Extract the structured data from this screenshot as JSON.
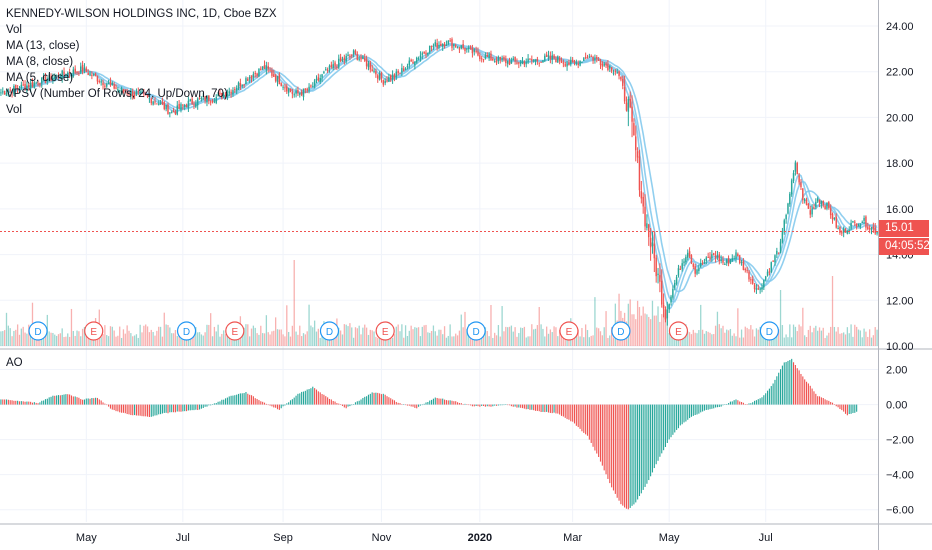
{
  "legend": {
    "title": "KENNEDY-WILSON HOLDINGS INC, 1D, Cboe BZX",
    "lines": [
      "Vol",
      "MA (13, close)",
      "MA (8, close)",
      "MA (5, close)",
      "VPSV (Number Of Rows, 24, Up/Down, 70)",
      "Vol"
    ]
  },
  "badges": {
    "last_price": "15.01",
    "countdown": "04:05:52"
  },
  "chart_data": [
    {
      "type": "candlestick",
      "title": "KENNEDY-WILSON HOLDINGS INC, 1D, Cboe BZX",
      "x_tick_labels": [
        "May",
        "Jul",
        "Sep",
        "Nov",
        "2020",
        "Mar",
        "May",
        "Jul"
      ],
      "y_tick_labels": [
        "10.00",
        "12.00",
        "14.00",
        "16.00",
        "18.00",
        "20.00",
        "22.00",
        "24.00"
      ],
      "ylim": [
        10,
        24.7
      ],
      "last_price": 15.01,
      "price_path": [
        [
          0,
          21.1
        ],
        [
          10,
          21.3
        ],
        [
          22,
          21.6
        ],
        [
          34,
          21.9
        ],
        [
          44,
          22.1
        ],
        [
          54,
          21.6
        ],
        [
          64,
          21.2
        ],
        [
          74,
          21.0
        ],
        [
          84,
          20.7
        ],
        [
          92,
          20.2
        ],
        [
          100,
          20.6
        ],
        [
          108,
          20.8
        ],
        [
          118,
          20.9
        ],
        [
          126,
          21.3
        ],
        [
          134,
          21.8
        ],
        [
          142,
          22.2
        ],
        [
          150,
          21.6
        ],
        [
          158,
          21.0
        ],
        [
          166,
          21.2
        ],
        [
          174,
          21.9
        ],
        [
          182,
          22.4
        ],
        [
          190,
          22.8
        ],
        [
          198,
          22.3
        ],
        [
          206,
          21.6
        ],
        [
          214,
          21.9
        ],
        [
          222,
          22.5
        ],
        [
          232,
          23.1
        ],
        [
          240,
          23.3
        ],
        [
          250,
          23.0
        ],
        [
          258,
          22.7
        ],
        [
          268,
          22.5
        ],
        [
          278,
          22.4
        ],
        [
          288,
          22.5
        ],
        [
          298,
          22.6
        ],
        [
          308,
          22.3
        ],
        [
          316,
          22.7
        ],
        [
          324,
          22.4
        ],
        [
          332,
          22.0
        ],
        [
          338,
          20.5
        ],
        [
          342,
          18.5
        ],
        [
          346,
          16.0
        ],
        [
          350,
          14.5
        ],
        [
          354,
          13.0
        ],
        [
          358,
          11.5
        ],
        [
          362,
          12.5
        ],
        [
          366,
          13.5
        ],
        [
          370,
          14.2
        ],
        [
          374,
          13.3
        ],
        [
          378,
          13.6
        ],
        [
          384,
          14.0
        ],
        [
          390,
          13.6
        ],
        [
          396,
          14.0
        ],
        [
          402,
          13.2
        ],
        [
          408,
          12.4
        ],
        [
          414,
          13.4
        ],
        [
          420,
          14.4
        ],
        [
          424,
          16.3
        ],
        [
          428,
          17.9
        ],
        [
          432,
          16.5
        ],
        [
          436,
          15.8
        ],
        [
          440,
          16.5
        ],
        [
          446,
          16.0
        ],
        [
          452,
          14.9
        ],
        [
          458,
          15.3
        ],
        [
          464,
          15.5
        ],
        [
          468,
          15.2
        ],
        [
          472,
          15.01
        ]
      ],
      "moving_averages": [
        "MA (13, close)",
        "MA (8, close)",
        "MA (5, close)"
      ],
      "dividend_markers": [
        "D",
        "D",
        "D",
        "D",
        "D",
        "D"
      ],
      "earnings_markers": [
        "E",
        "E",
        "E",
        "E",
        "E",
        "E"
      ]
    },
    {
      "type": "histogram",
      "title": "AO",
      "y_tick_labels": [
        "2.00",
        "0.00",
        "−2.00",
        "−4.00",
        "−6.00"
      ],
      "ylim": [
        -6.7,
        3.0
      ],
      "ao_path": [
        [
          0,
          0.3
        ],
        [
          10,
          0.2
        ],
        [
          20,
          0.1
        ],
        [
          28,
          0.5
        ],
        [
          36,
          0.6
        ],
        [
          44,
          0.3
        ],
        [
          52,
          0.4
        ],
        [
          60,
          -0.3
        ],
        [
          70,
          -0.6
        ],
        [
          80,
          -0.7
        ],
        [
          88,
          -0.5
        ],
        [
          96,
          -0.4
        ],
        [
          106,
          -0.3
        ],
        [
          116,
          0.1
        ],
        [
          124,
          0.5
        ],
        [
          132,
          0.7
        ],
        [
          140,
          0.2
        ],
        [
          150,
          -0.3
        ],
        [
          160,
          0.6
        ],
        [
          168,
          1.0
        ],
        [
          176,
          0.4
        ],
        [
          186,
          -0.2
        ],
        [
          194,
          0.3
        ],
        [
          200,
          0.7
        ],
        [
          206,
          0.6
        ],
        [
          214,
          0.1
        ],
        [
          224,
          -0.2
        ],
        [
          234,
          0.4
        ],
        [
          244,
          0.2
        ],
        [
          254,
          -0.1
        ],
        [
          264,
          -0.1
        ],
        [
          272,
          0.0
        ],
        [
          280,
          -0.2
        ],
        [
          290,
          -0.4
        ],
        [
          300,
          -0.5
        ],
        [
          308,
          -1.0
        ],
        [
          316,
          -1.8
        ],
        [
          322,
          -3.0
        ],
        [
          328,
          -4.5
        ],
        [
          334,
          -5.7
        ],
        [
          338,
          -6.0
        ],
        [
          342,
          -5.6
        ],
        [
          348,
          -4.5
        ],
        [
          354,
          -3.2
        ],
        [
          360,
          -2.0
        ],
        [
          366,
          -1.2
        ],
        [
          372,
          -0.7
        ],
        [
          380,
          -0.3
        ],
        [
          388,
          -0.1
        ],
        [
          396,
          0.3
        ],
        [
          402,
          0.0
        ],
        [
          410,
          0.4
        ],
        [
          416,
          1.2
        ],
        [
          422,
          2.4
        ],
        [
          426,
          2.6
        ],
        [
          432,
          1.6
        ],
        [
          440,
          0.5
        ],
        [
          448,
          0.1
        ],
        [
          456,
          -0.6
        ],
        [
          464,
          -0.3
        ]
      ]
    }
  ],
  "colors": {
    "up": "#26a69a",
    "down": "#ef5350",
    "ma": "#7ec7ec",
    "grid": "#f0f3fa",
    "axis_text": "#131722",
    "price_line": "#ef5350"
  }
}
